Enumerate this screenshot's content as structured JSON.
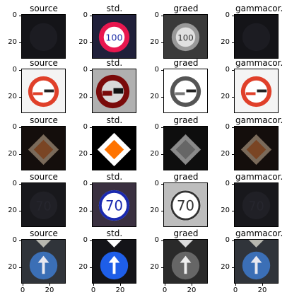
{
  "columns": [
    "source",
    "std.",
    "graed",
    "gammacor."
  ],
  "y_ticks": [
    "0",
    "20"
  ],
  "x_ticks": [
    "0",
    "20"
  ],
  "rows": [
    {
      "sign": "speed-100-dark",
      "panels": [
        "source-dark",
        "std-bright",
        "gray",
        "gamma-dark"
      ]
    },
    {
      "sign": "no-overtaking",
      "panels": [
        "source",
        "std-contrast",
        "gray",
        "gamma"
      ]
    },
    {
      "sign": "priority-road",
      "panels": [
        "source-dark",
        "std-bright",
        "gray",
        "gamma-dark"
      ]
    },
    {
      "sign": "speed-70-dark",
      "panels": [
        "source-dark",
        "std-bright",
        "gray",
        "gamma-dark"
      ]
    },
    {
      "sign": "keep-straight",
      "panels": [
        "source",
        "std-bright",
        "gray",
        "gamma"
      ]
    }
  ]
}
